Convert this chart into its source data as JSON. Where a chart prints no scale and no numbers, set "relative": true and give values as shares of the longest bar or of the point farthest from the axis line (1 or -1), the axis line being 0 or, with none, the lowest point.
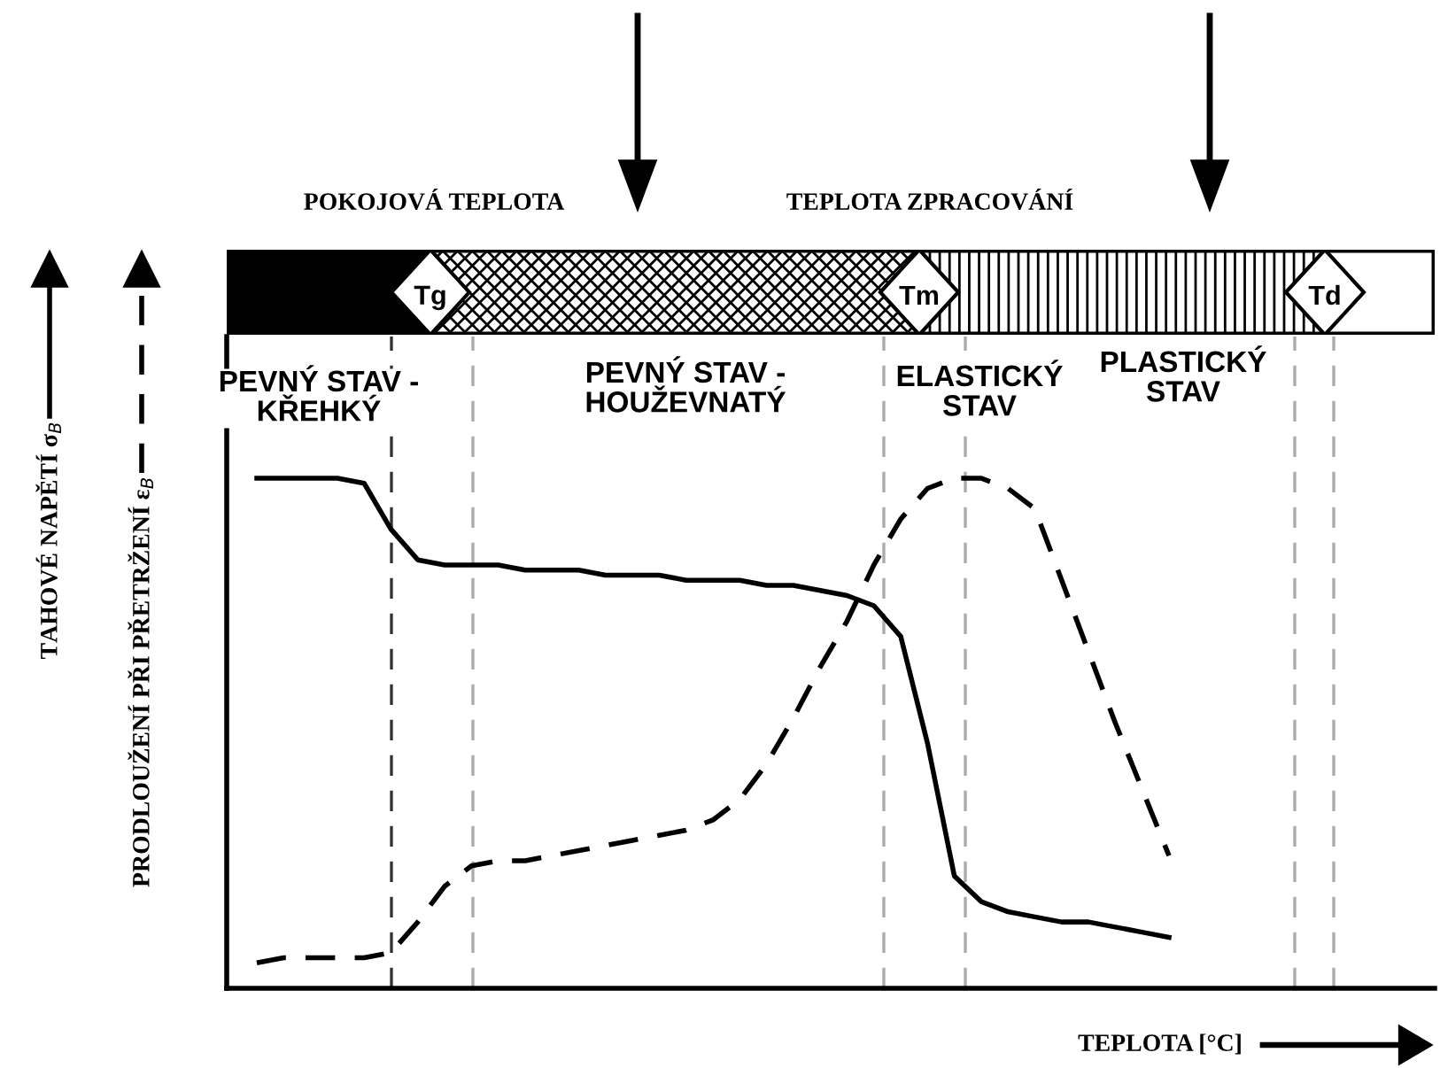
{
  "chart_data": {
    "type": "line",
    "relative": true,
    "xlabel": "TEPLOTA [°C]",
    "ylabel": "PRODLOUŽENÍ PŘI PŘETRŽENÍ ε$_{B}$",
    "categories": [
      null,
      null,
      null,
      null,
      null,
      null,
      null,
      null,
      null,
      null,
      null,
      null,
      null,
      null,
      null,
      null,
      null,
      null,
      null,
      null,
      null,
      null,
      null,
      null,
      null,
      null,
      null,
      null,
      null,
      null,
      null,
      null,
      null,
      null,
      null
    ],
    "series": [
      {
        "color": "#000000",
        "line_style": "solid",
        "values": [
          1.0,
          1.0,
          1.0,
          1.0,
          0.99,
          0.9,
          0.84,
          0.83,
          0.83,
          0.83,
          0.82,
          0.82,
          0.82,
          0.81,
          0.81,
          0.81,
          0.8,
          0.8,
          0.8,
          0.79,
          0.79,
          0.78,
          0.77,
          0.75,
          0.69,
          0.48,
          0.22,
          0.17,
          0.15,
          0.14,
          0.13,
          0.13,
          0.12,
          0.11,
          0.1
        ]
      },
      {
        "color": "#000000",
        "line_style": "dashed",
        "values": [
          0.05,
          0.06,
          0.06,
          0.06,
          0.06,
          0.07,
          0.13,
          0.2,
          0.24,
          0.25,
          0.25,
          0.26,
          0.27,
          0.28,
          0.29,
          0.3,
          0.31,
          0.33,
          0.37,
          0.44,
          0.53,
          0.63,
          0.72,
          0.83,
          0.92,
          0.98,
          1.0,
          1.0,
          0.98,
          0.94,
          0.8,
          0.66,
          0.52,
          0.39,
          0.26
        ]
      }
    ],
    "annotations": [
      "POKOJOVÁ TEPLOTA",
      "TEPLOTA ZPRACOVÁNÍ",
      "Tg",
      "Tm",
      "Td",
      "PEVNÝ STAV -\nKŘEHKÝ",
      "PEVNÝ STAV -\nHOUŽEVNATÝ",
      "ELASTICKÝ\nSTAV",
      "PLASTICKÝ\nSTAV",
      "TAHOVÉ NAPĚTÍ σ$_{B}$"
    ],
    "tick_labels": false
  }
}
